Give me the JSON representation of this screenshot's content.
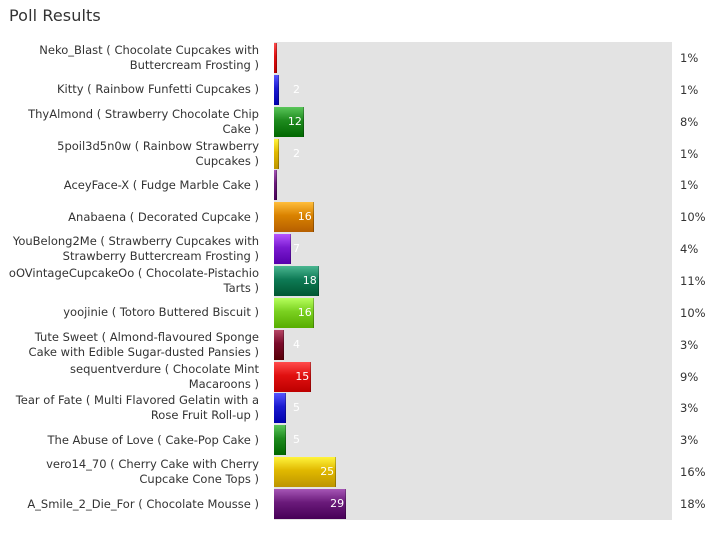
{
  "page_title": "Poll Results",
  "chart_data": {
    "type": "bar",
    "orientation": "horizontal",
    "title": "Poll Results",
    "xlim": [
      0,
      160
    ],
    "grid": false,
    "rows": [
      {
        "label": "Neko_Blast ( Chocolate Cupcakes with Buttercream Frosting )",
        "value": 1,
        "value_label": "",
        "percent": "1%",
        "color": "#e01010"
      },
      {
        "label": "Kitty ( Rainbow Funfetti Cupcakes )",
        "value": 2,
        "value_label": "2",
        "percent": "1%",
        "color": "#1a1ad0"
      },
      {
        "label": "ThyAlmond ( Strawberry Chocolate Chip Cake )",
        "value": 12,
        "value_label": "12",
        "percent": "8%",
        "color": "#1e8a1e"
      },
      {
        "label": "5poil3d5n0w ( Rainbow Strawberry Cupcakes )",
        "value": 2,
        "value_label": "2",
        "percent": "1%",
        "color": "#e0b800"
      },
      {
        "label": "AceyFace-X ( Fudge Marble Cake )",
        "value": 1,
        "value_label": "",
        "percent": "1%",
        "color": "#6a1a7a"
      },
      {
        "label": "Anabaena ( Decorated Cupcake )",
        "value": 16,
        "value_label": "16",
        "percent": "10%",
        "color": "#d98200"
      },
      {
        "label": "YouBelong2Me ( Strawberry Cupcakes with Strawberry Buttercream Frosting )",
        "value": 7,
        "value_label": "7",
        "percent": "4%",
        "color": "#7a1ad0"
      },
      {
        "label": "oOVintageCupcakeOo ( Chocolate-Pistachio Tarts )",
        "value": 18,
        "value_label": "18",
        "percent": "11%",
        "color": "#0e7a55"
      },
      {
        "label": "yoojinie ( Totoro Buttered Biscuit )",
        "value": 16,
        "value_label": "16",
        "percent": "10%",
        "color": "#7ad020"
      },
      {
        "label": "Tute Sweet ( Almond-flavoured Sponge Cake with Edible Sugar-dusted Pansies )",
        "value": 4,
        "value_label": "4",
        "percent": "3%",
        "color": "#7a0a2a"
      },
      {
        "label": "sequentverdure ( Chocolate Mint Macaroons )",
        "value": 15,
        "value_label": "15",
        "percent": "9%",
        "color": "#e01010"
      },
      {
        "label": "Tear of Fate ( Multi Flavored Gelatin with a Rose Fruit Roll-up )",
        "value": 5,
        "value_label": "5",
        "percent": "3%",
        "color": "#1a1ad0"
      },
      {
        "label": "The Abuse of Love ( Cake-Pop Cake )",
        "value": 5,
        "value_label": "5",
        "percent": "3%",
        "color": "#1e8a1e"
      },
      {
        "label": "vero14_70 ( Cherry Cake with Cherry Cupcake Cone Tops )",
        "value": 25,
        "value_label": "25",
        "percent": "16%",
        "color": "#e0b800"
      },
      {
        "label": "A_Smile_2_Die_For ( Chocolate Mousse )",
        "value": 29,
        "value_label": "29",
        "percent": "18%",
        "color": "#6a1a7a"
      }
    ]
  }
}
